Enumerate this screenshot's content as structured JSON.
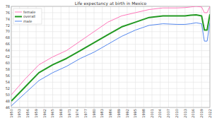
{
  "chart_data": {
    "type": "line",
    "title": "Life expectancy at birth in Mexico",
    "x": [
      1950,
      1955,
      1960,
      1965,
      1970,
      1975,
      1980,
      1985,
      1990,
      1995,
      2000,
      2005,
      2010,
      2013,
      2015,
      2017,
      2019,
      2020,
      2021,
      2022
    ],
    "series": [
      {
        "name": "female",
        "color": "#ff77bb",
        "values": [
          50,
          55,
          59.5,
          62,
          64,
          67,
          70,
          73,
          75,
          76,
          77,
          77.5,
          77.5,
          77.6,
          77.8,
          78,
          77.8,
          76,
          76,
          78
        ]
      },
      {
        "name": "overall",
        "color": "#229922",
        "values": [
          48,
          52.5,
          57,
          59.5,
          61.5,
          64,
          66.5,
          69,
          71.5,
          73,
          74.5,
          75,
          75,
          75,
          75.2,
          75.3,
          75,
          70.5,
          70.5,
          75.5
        ]
      },
      {
        "name": "male",
        "color": "#5588ee",
        "values": [
          46.5,
          50.5,
          54.5,
          57,
          59,
          61.5,
          63.5,
          66,
          68.5,
          70.5,
          72,
          72.5,
          72.3,
          72.3,
          72.5,
          72.8,
          72.5,
          67,
          67,
          72.8
        ]
      }
    ],
    "xlim": [
      1950,
      2022
    ],
    "xticks": [
      1950,
      1953,
      1956,
      1959,
      1962,
      1965,
      1968,
      1971,
      1974,
      1977,
      1980,
      1983,
      1986,
      1989,
      1992,
      1995,
      1998,
      2001,
      2004,
      2007,
      2010,
      2013,
      2016,
      2019,
      2022
    ],
    "ylim": [
      46,
      78
    ],
    "yticks": [
      46,
      48,
      50,
      52,
      54,
      56,
      58,
      60,
      62,
      64,
      66,
      68,
      70,
      72,
      74,
      76,
      78
    ],
    "grid": true,
    "legend": "top-left"
  }
}
